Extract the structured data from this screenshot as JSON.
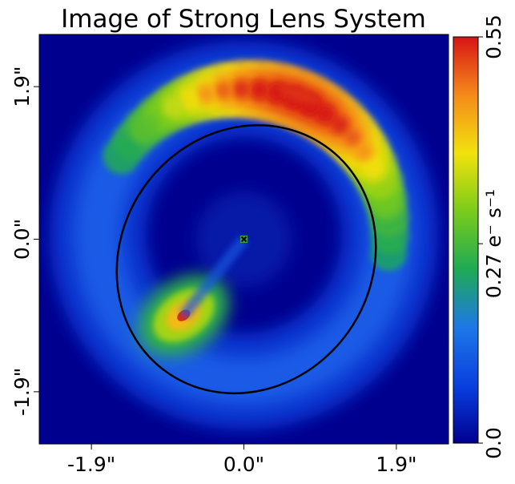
{
  "chart_data": {
    "type": "heatmap",
    "title": "Image of Strong Lens System",
    "xlabel": "",
    "ylabel": "",
    "extent_arcsec": [
      -2.55,
      2.55
    ],
    "x_ticks": [
      {
        "value": -1.9,
        "label": "-1.9\""
      },
      {
        "value": 0.0,
        "label": "0.0\""
      },
      {
        "value": 1.9,
        "label": "1.9\""
      }
    ],
    "y_ticks": [
      {
        "value": 1.9,
        "label": "1.9\""
      },
      {
        "value": 0.0,
        "label": "0.0\""
      },
      {
        "value": -1.9,
        "label": "-1.9\""
      }
    ],
    "colorbar": {
      "min": 0.0,
      "max": 0.55,
      "ticks": [
        {
          "value": 0.55,
          "label": "0.55"
        },
        {
          "value": 0.27,
          "label": "0.27 e⁻ s⁻¹"
        },
        {
          "value": 0.0,
          "label": "0.0"
        }
      ],
      "colormap": [
        "#00008f",
        "#0a40e0",
        "#1e78e6",
        "#1faa55",
        "#7acc1a",
        "#f2e20d",
        "#f58a1a",
        "#d61414"
      ]
    },
    "features": {
      "arc": {
        "center": [
          0.0,
          0.05
        ],
        "radius": 1.82,
        "peak": [
          0.7,
          1.8
        ],
        "peak_value": 0.55
      },
      "counter_image": {
        "position": [
          -0.75,
          -0.95
        ],
        "peak_value": 0.55
      },
      "lens_center": {
        "position": [
          0.0,
          0.0
        ],
        "marker": "x"
      },
      "critical_curve": {
        "center": [
          0.03,
          -0.25
        ],
        "semi_major": 1.72,
        "semi_minor": 1.56,
        "angle_deg": 55
      }
    }
  }
}
